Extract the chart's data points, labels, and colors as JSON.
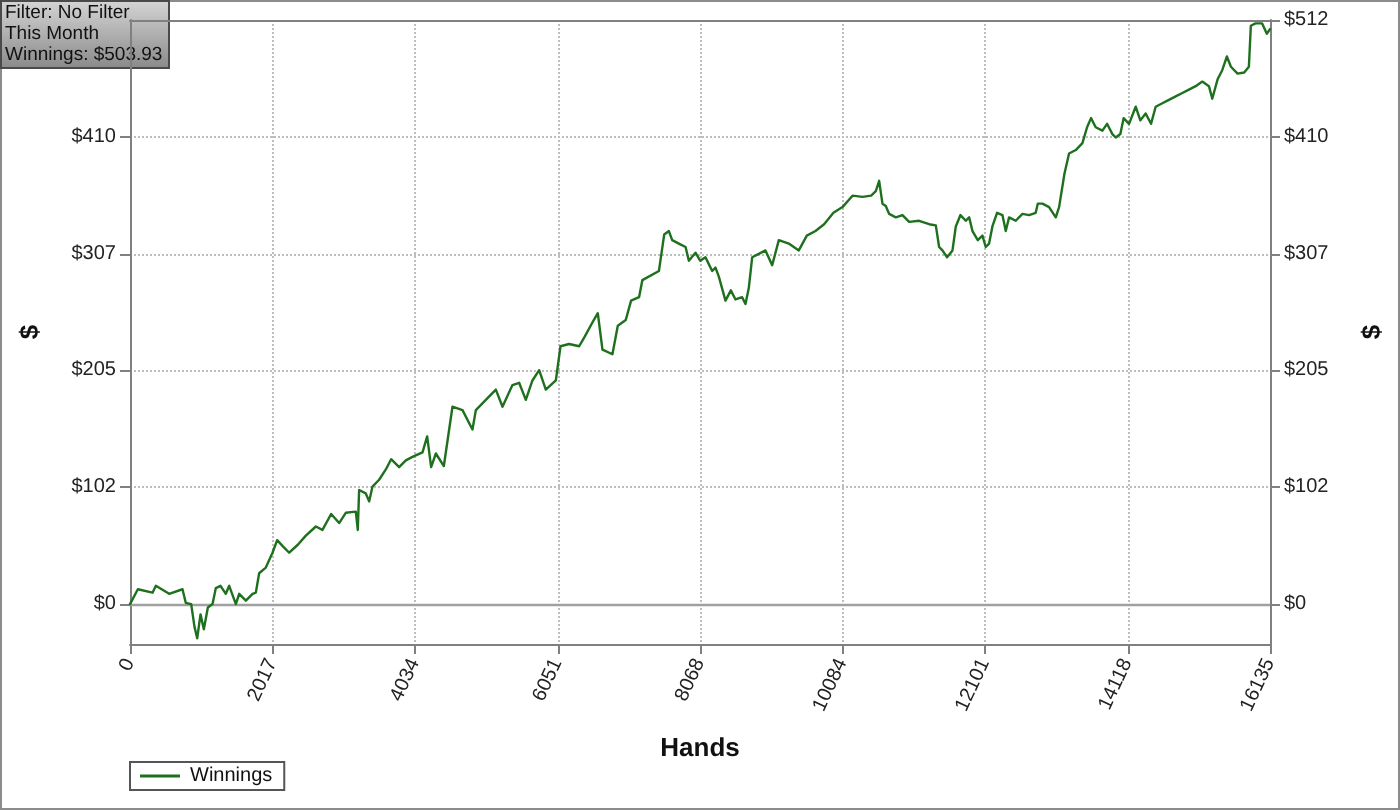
{
  "chart_data": {
    "type": "line",
    "xlabel": "Hands",
    "ylabel": "$",
    "y2label": "$",
    "annotations": [
      "Filter: No Filter",
      "This Month",
      "Winnings: $503.93"
    ],
    "x": [
      0,
      111,
      319,
      366,
      554,
      743,
      790,
      866,
      913,
      951,
      998,
      1045,
      1102,
      1168,
      1215,
      1281,
      1356,
      1404,
      1498,
      1545,
      1640,
      1734,
      1781,
      1828,
      1922,
      2017,
      2083,
      2158,
      2253,
      2375,
      2489,
      2630,
      2724,
      2847,
      2960,
      3054,
      3196,
      3224,
      3243,
      3337,
      3385,
      3432,
      3526,
      3621,
      3696,
      3809,
      3904,
      3998,
      4140,
      4206,
      4262,
      4329,
      4442,
      4564,
      4706,
      4847,
      4895,
      5036,
      5178,
      5272,
      5413,
      5508,
      5602,
      5696,
      5791,
      5885,
      6027,
      6093,
      6215,
      6357,
      6432,
      6564,
      6621,
      6687,
      6828,
      6904,
      7017,
      7092,
      7205,
      7252,
      7486,
      7561,
      7627,
      7674,
      7768,
      7863,
      7910,
      8004,
      8070,
      8145,
      8192,
      8240,
      8287,
      8334,
      8428,
      8504,
      8570,
      8664,
      8711,
      8758,
      8806,
      8900,
      8994,
      9089,
      9183,
      9325,
      9466,
      9579,
      9702,
      9824,
      9956,
      10084,
      10226,
      10367,
      10490,
      10556,
      10603,
      10650,
      10697,
      10745,
      10839,
      10933,
      11028,
      11169,
      11311,
      11405,
      11452,
      11499,
      11565,
      11641,
      11688,
      11754,
      11829,
      11877,
      11924,
      11999,
      12065,
      12112,
      12159,
      12206,
      12272,
      12348,
      12395,
      12442,
      12536,
      12631,
      12725,
      12819,
      12848,
      12914,
      13008,
      13103,
      13150,
      13225,
      13291,
      13386,
      13480,
      13546,
      13602,
      13668,
      13763,
      13829,
      13904,
      13951,
      14017,
      14064,
      14140,
      14234,
      14300,
      14375,
      14451,
      14517,
      14611,
      14705,
      14800,
      14894,
      14988,
      15083,
      15177,
      15271,
      15318,
      15393,
      15459,
      15525,
      15582,
      15676,
      15770,
      15836,
      15864,
      15930,
      16024,
      16090,
      16135
    ],
    "series": [
      {
        "name": "Winnings",
        "color": "#1e701e",
        "values": [
          0,
          13,
          10,
          16,
          9,
          13,
          1,
          0,
          -20,
          -30,
          -9,
          -22,
          -3,
          0,
          14,
          16,
          9,
          16,
          0,
          9,
          3,
          9,
          10,
          27,
          32,
          45,
          56,
          51,
          45,
          52,
          60,
          68,
          65,
          79,
          71,
          80,
          81,
          65,
          100,
          97,
          90,
          103,
          109,
          118,
          127,
          120,
          126,
          129,
          133,
          147,
          120,
          132,
          121,
          173,
          170,
          153,
          170,
          179,
          188,
          173,
          192,
          194,
          179,
          196,
          205,
          188,
          196,
          226,
          228,
          226,
          234,
          249,
          255,
          223,
          219,
          244,
          249,
          266,
          269,
          284,
          292,
          324,
          327,
          319,
          316,
          313,
          301,
          308,
          301,
          304,
          298,
          292,
          295,
          287,
          266,
          275,
          267,
          269,
          263,
          277,
          304,
          307,
          310,
          297,
          319,
          316,
          310,
          323,
          327,
          333,
          343,
          348,
          358,
          357,
          358,
          362,
          371,
          351,
          349,
          342,
          339,
          341,
          335,
          336,
          333,
          332,
          313,
          310,
          304,
          310,
          331,
          341,
          336,
          339,
          327,
          319,
          323,
          313,
          316,
          331,
          343,
          341,
          327,
          339,
          336,
          342,
          341,
          343,
          351,
          351,
          348,
          339,
          348,
          377,
          395,
          398,
          404,
          418,
          426,
          418,
          415,
          421,
          412,
          409,
          412,
          426,
          421,
          436,
          424,
          430,
          421,
          436,
          439,
          442,
          445,
          448,
          451,
          454,
          458,
          454,
          443,
          460,
          468,
          480,
          471,
          465,
          466,
          471,
          507,
          509,
          509,
          500,
          504
        ]
      }
    ],
    "xlim": [
      0,
      16135
    ],
    "xticks": [
      0,
      {
        "value": 2016.875,
        "label": "2017"
      },
      {
        "value": 4033.75,
        "label": "4034"
      },
      {
        "value": 6050.625,
        "label": "6051"
      },
      {
        "value": 8067.5,
        "label": "8068"
      },
      {
        "value": 10084.375,
        "label": "10084"
      },
      {
        "value": 12101.25,
        "label": "12101"
      },
      {
        "value": 14118.125,
        "label": "14118"
      },
      16135
    ],
    "ylim": [
      -35,
      512
    ],
    "yticks": [
      {
        "value": 0,
        "label": "$0"
      },
      {
        "value": 102.4,
        "label": "$102"
      },
      {
        "value": 204.8,
        "label": "$205"
      },
      {
        "value": 307.2,
        "label": "$307"
      },
      {
        "value": 409.6,
        "label": "$410"
      }
    ],
    "y2lim": [
      -35,
      512
    ],
    "y2ticks": [
      {
        "value": 0,
        "label": "$0"
      },
      {
        "value": 102.4,
        "label": "$102"
      },
      {
        "value": 204.8,
        "label": "$205"
      },
      {
        "value": 307.2,
        "label": "$307"
      },
      {
        "value": 409.6,
        "label": "$410"
      },
      {
        "value": 512,
        "label": "$512"
      }
    ],
    "ref_lines": [
      {
        "axis": "y",
        "value": 0,
        "color": "#a0a0a0"
      }
    ],
    "grid": true,
    "legend": "bottom left",
    "marker": "none",
    "line_style": "solid"
  }
}
